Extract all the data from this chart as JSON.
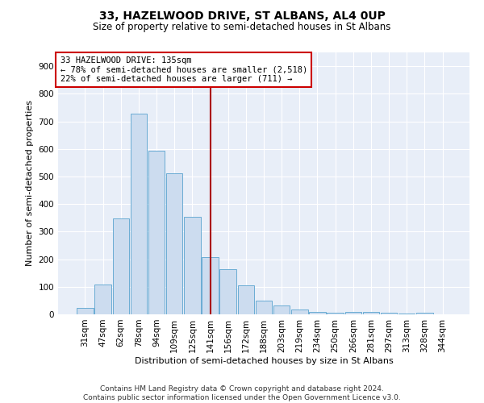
{
  "title": "33, HAZELWOOD DRIVE, ST ALBANS, AL4 0UP",
  "subtitle": "Size of property relative to semi-detached houses in St Albans",
  "xlabel": "Distribution of semi-detached houses by size in St Albans",
  "ylabel": "Number of semi-detached properties",
  "categories": [
    "31sqm",
    "47sqm",
    "62sqm",
    "78sqm",
    "94sqm",
    "109sqm",
    "125sqm",
    "141sqm",
    "156sqm",
    "172sqm",
    "188sqm",
    "203sqm",
    "219sqm",
    "234sqm",
    "250sqm",
    "266sqm",
    "281sqm",
    "297sqm",
    "313sqm",
    "328sqm",
    "344sqm"
  ],
  "values": [
    22,
    107,
    347,
    727,
    592,
    512,
    355,
    207,
    163,
    104,
    50,
    31,
    17,
    10,
    5,
    10,
    8,
    5,
    4,
    5,
    0
  ],
  "bar_color": "#ccdcef",
  "bar_edge_color": "#6aacd4",
  "vline_x_index": 7,
  "vline_color": "#aa0000",
  "annotation_text": "33 HAZELWOOD DRIVE: 135sqm\n← 78% of semi-detached houses are smaller (2,518)\n22% of semi-detached houses are larger (711) →",
  "annotation_box_edgecolor": "#cc0000",
  "background_color": "#e8eef8",
  "grid_color": "#ffffff",
  "ylim": [
    0,
    950
  ],
  "yticks": [
    0,
    100,
    200,
    300,
    400,
    500,
    600,
    700,
    800,
    900
  ],
  "footer": "Contains HM Land Registry data © Crown copyright and database right 2024.\nContains public sector information licensed under the Open Government Licence v3.0.",
  "title_fontsize": 10,
  "subtitle_fontsize": 8.5,
  "ylabel_fontsize": 8,
  "xlabel_fontsize": 8,
  "tick_fontsize": 7.5,
  "annotation_fontsize": 7.5,
  "footer_fontsize": 6.5
}
